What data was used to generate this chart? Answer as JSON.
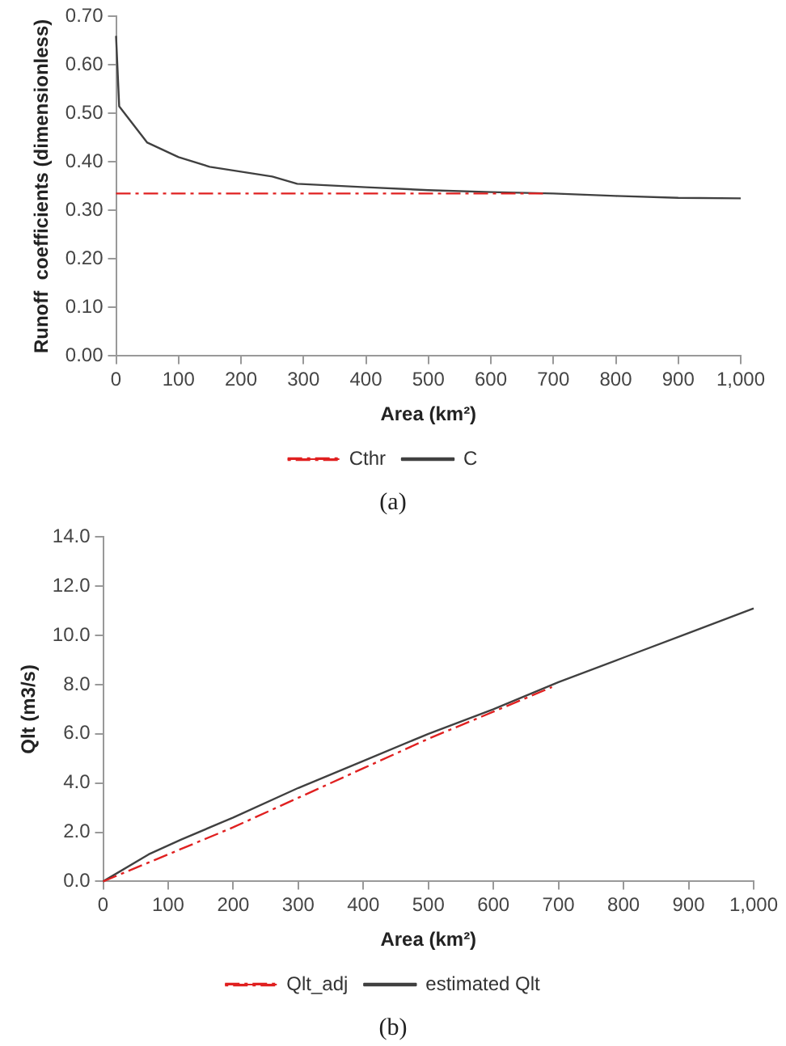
{
  "chart_data": [
    {
      "type": "line",
      "xlabel": "Area (km²)",
      "ylabel": "Runoff  coefficients (dimensionless)",
      "annotations": [
        "(a)"
      ],
      "legend": "bottom",
      "grid": false,
      "marker": "none",
      "xlim": [
        0,
        1000
      ],
      "xticks": [
        0,
        100,
        200,
        300,
        400,
        500,
        600,
        700,
        800,
        900,
        {
          "value": 1000,
          "label": "1,000"
        }
      ],
      "ylim": [
        0,
        0.7
      ],
      "yticks": [
        {
          "value": 0,
          "label": "0.00"
        },
        {
          "value": 0.1,
          "label": "0.10"
        },
        {
          "value": 0.2,
          "label": "0.20"
        },
        {
          "value": 0.3,
          "label": "0.30"
        },
        {
          "value": 0.4,
          "label": "0.40"
        },
        {
          "value": 0.5,
          "label": "0.50"
        },
        {
          "value": 0.6,
          "label": "0.60"
        },
        {
          "value": 0.7,
          "label": "0.70"
        }
      ],
      "series": [
        {
          "name": "Cthr",
          "color": "#e02020",
          "line_style": "dashed",
          "x": [
            0,
            690
          ],
          "values": [
            0.335,
            0.335
          ]
        },
        {
          "name": "C",
          "color": "#404040",
          "line_style": "solid",
          "x": [
            0,
            5,
            50,
            100,
            150,
            200,
            250,
            290,
            400,
            500,
            600,
            700,
            800,
            900,
            1000
          ],
          "values": [
            0.66,
            0.515,
            0.44,
            0.41,
            0.39,
            0.38,
            0.37,
            0.355,
            0.348,
            0.342,
            0.338,
            0.335,
            0.33,
            0.326,
            0.325
          ]
        }
      ]
    },
    {
      "type": "line",
      "xlabel": "Area (km²)",
      "ylabel": "Qlt (m3/s)",
      "annotations": [
        "(b)"
      ],
      "legend": "bottom",
      "grid": false,
      "marker": "none",
      "xlim": [
        0,
        1000
      ],
      "xticks": [
        0,
        100,
        200,
        300,
        400,
        500,
        600,
        700,
        800,
        900,
        {
          "value": 1000,
          "label": "1,000"
        }
      ],
      "ylim": [
        0,
        14
      ],
      "yticks": [
        {
          "value": 0,
          "label": "0.0"
        },
        {
          "value": 2,
          "label": "2.0"
        },
        {
          "value": 4,
          "label": "4.0"
        },
        {
          "value": 6,
          "label": "6.0"
        },
        {
          "value": 8,
          "label": "8.0"
        },
        {
          "value": 10,
          "label": "10.0"
        },
        {
          "value": 12,
          "label": "12.0"
        },
        {
          "value": 14,
          "label": "14.0"
        }
      ],
      "series": [
        {
          "name": "Qlt_adj",
          "color": "#e02020",
          "line_style": "dashed",
          "x": [
            0,
            100,
            200,
            300,
            400,
            500,
            600,
            690
          ],
          "values": [
            0,
            1.1,
            2.2,
            3.4,
            4.6,
            5.8,
            6.9,
            7.9
          ]
        },
        {
          "name": "estimated Qlt",
          "color": "#404040",
          "line_style": "solid",
          "x": [
            0,
            70,
            120,
            200,
            300,
            400,
            500,
            600,
            700,
            800,
            900,
            1000
          ],
          "values": [
            0,
            1.1,
            1.7,
            2.6,
            3.8,
            4.9,
            6.0,
            7.0,
            8.1,
            9.1,
            10.1,
            11.1
          ]
        }
      ]
    }
  ]
}
